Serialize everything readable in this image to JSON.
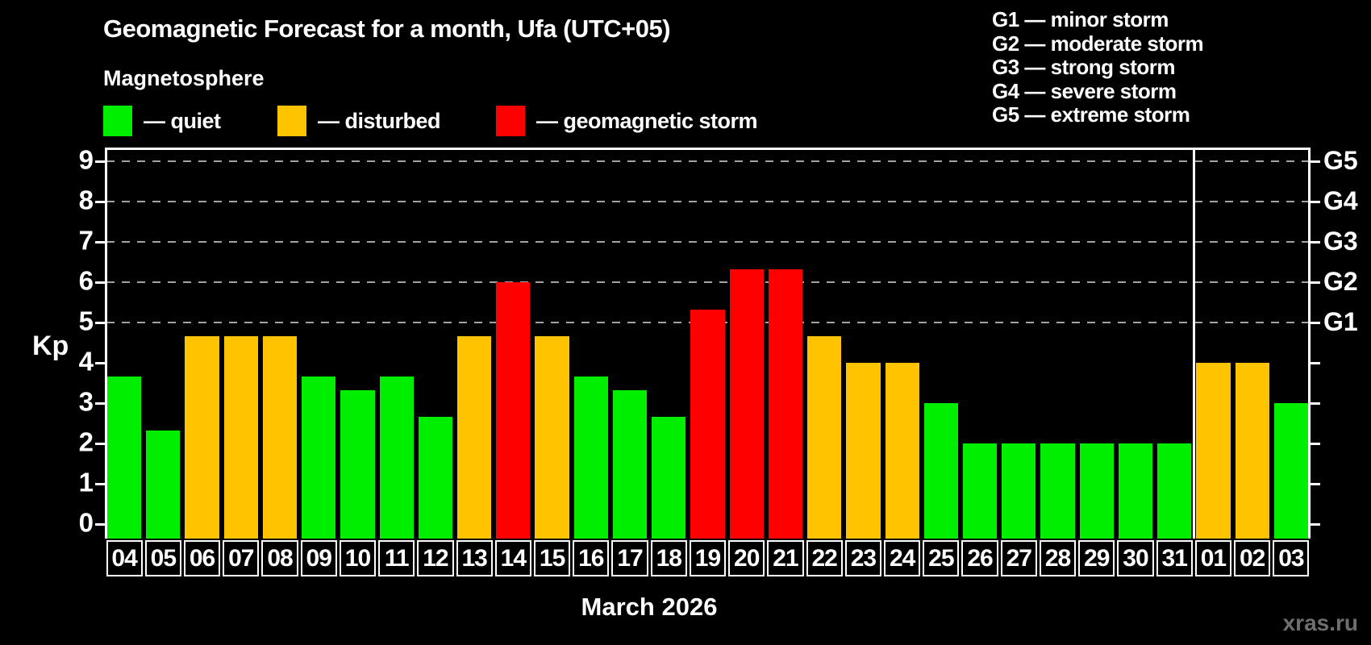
{
  "title": "Geomagnetic Forecast for a month, Ufa (UTC+05)",
  "subtitle": "Magnetosphere",
  "legend": {
    "items": [
      {
        "label": "— quiet",
        "status": "quiet"
      },
      {
        "label": "— disturbed",
        "status": "disturbed"
      },
      {
        "label": "— geomagnetic storm",
        "status": "storm"
      }
    ]
  },
  "storm_scale_legend": {
    "lines": [
      "G1 — minor storm",
      "G2 — moderate storm",
      "G3 — strong storm",
      "G4 — severe storm",
      "G5 — extreme storm"
    ]
  },
  "watermark": "xras.ru",
  "colors": {
    "quiet": "#00ee00",
    "disturbed": "#ffc300",
    "storm": "#ff0000",
    "grid": "#a3a3a3",
    "axis": "#ffffff",
    "watermark": "#6f6f6f"
  },
  "chart_data": {
    "type": "bar",
    "title": "Geomagnetic Forecast for a month, Ufa (UTC+05)",
    "xlabel": "March 2026",
    "ylabel": "Kp",
    "ylim": [
      0,
      9
    ],
    "yticks": [
      0,
      1,
      2,
      3,
      4,
      5,
      6,
      7,
      8,
      9
    ],
    "gridlines_kp": [
      5,
      6,
      7,
      8,
      9
    ],
    "grid_style": "dashed",
    "legend_position": "top",
    "right_axis_labels": [
      {
        "label": "G1",
        "kp": 5
      },
      {
        "label": "G2",
        "kp": 6
      },
      {
        "label": "G3",
        "kp": 7
      },
      {
        "label": "G4",
        "kp": 8
      },
      {
        "label": "G5",
        "kp": 9
      }
    ],
    "month_separator_after_index": 27,
    "days": [
      {
        "day": "04",
        "kp": 3.67,
        "status": "quiet"
      },
      {
        "day": "05",
        "kp": 2.33,
        "status": "quiet"
      },
      {
        "day": "06",
        "kp": 4.67,
        "status": "disturbed"
      },
      {
        "day": "07",
        "kp": 4.67,
        "status": "disturbed"
      },
      {
        "day": "08",
        "kp": 4.67,
        "status": "disturbed"
      },
      {
        "day": "09",
        "kp": 3.67,
        "status": "quiet"
      },
      {
        "day": "10",
        "kp": 3.33,
        "status": "quiet"
      },
      {
        "day": "11",
        "kp": 3.67,
        "status": "quiet"
      },
      {
        "day": "12",
        "kp": 2.67,
        "status": "quiet"
      },
      {
        "day": "13",
        "kp": 4.67,
        "status": "disturbed"
      },
      {
        "day": "14",
        "kp": 6.0,
        "status": "storm"
      },
      {
        "day": "15",
        "kp": 4.67,
        "status": "disturbed"
      },
      {
        "day": "16",
        "kp": 3.67,
        "status": "quiet"
      },
      {
        "day": "17",
        "kp": 3.33,
        "status": "quiet"
      },
      {
        "day": "18",
        "kp": 2.67,
        "status": "quiet"
      },
      {
        "day": "19",
        "kp": 5.33,
        "status": "storm"
      },
      {
        "day": "20",
        "kp": 6.33,
        "status": "storm"
      },
      {
        "day": "21",
        "kp": 6.33,
        "status": "storm"
      },
      {
        "day": "22",
        "kp": 4.67,
        "status": "disturbed"
      },
      {
        "day": "23",
        "kp": 4.0,
        "status": "disturbed"
      },
      {
        "day": "24",
        "kp": 4.0,
        "status": "disturbed"
      },
      {
        "day": "25",
        "kp": 3.0,
        "status": "quiet"
      },
      {
        "day": "26",
        "kp": 2.0,
        "status": "quiet"
      },
      {
        "day": "27",
        "kp": 2.0,
        "status": "quiet"
      },
      {
        "day": "28",
        "kp": 2.0,
        "status": "quiet"
      },
      {
        "day": "29",
        "kp": 2.0,
        "status": "quiet"
      },
      {
        "day": "30",
        "kp": 2.0,
        "status": "quiet"
      },
      {
        "day": "31",
        "kp": 2.0,
        "status": "quiet"
      },
      {
        "day": "01",
        "kp": 4.0,
        "status": "disturbed"
      },
      {
        "day": "02",
        "kp": 4.0,
        "status": "disturbed"
      },
      {
        "day": "03",
        "kp": 3.0,
        "status": "quiet"
      }
    ]
  }
}
